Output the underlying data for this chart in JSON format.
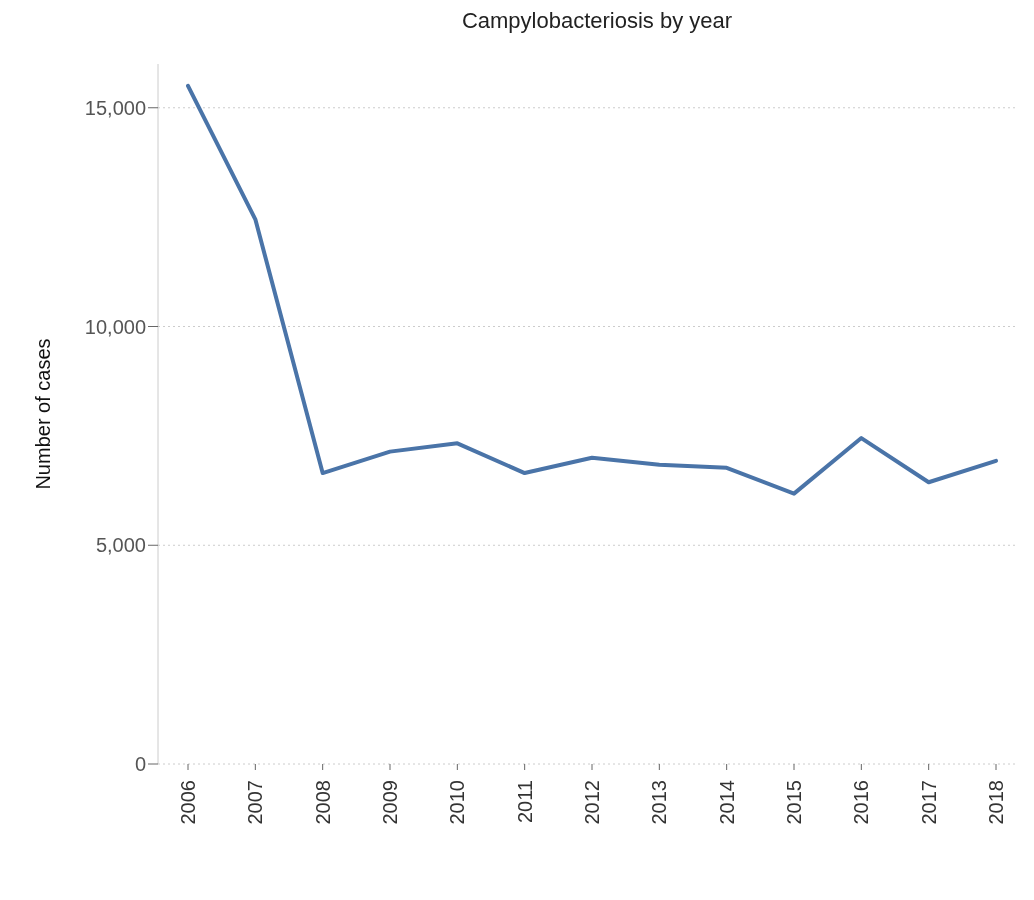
{
  "chart_data": {
    "type": "line",
    "title": "Campylobacteriosis by year",
    "ylabel": "Number of cases",
    "categories": [
      "2006",
      "2007",
      "2008",
      "2009",
      "2010",
      "2011",
      "2012",
      "2013",
      "2014",
      "2015",
      "2016",
      "2017",
      "2018"
    ],
    "series": [
      {
        "color": "#4a74a8",
        "values": [
          15500,
          12450,
          6650,
          7140,
          7330,
          6650,
          7000,
          6840,
          6770,
          6180,
          7450,
          6440,
          6930
        ]
      }
    ],
    "ylim": [
      0,
      16000
    ],
    "yticks": [
      {
        "value": 0,
        "label": "0"
      },
      {
        "value": 5000,
        "label": "5,000"
      },
      {
        "value": 10000,
        "label": "10,000"
      },
      {
        "value": 15000,
        "label": "15,000"
      }
    ],
    "grid": "y",
    "legend": false,
    "marker": "none",
    "line_style": "solid"
  }
}
